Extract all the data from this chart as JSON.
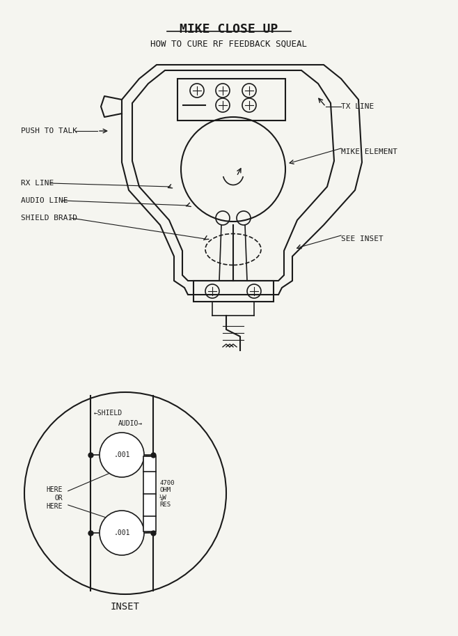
{
  "title": "MIKE CLOSE UP",
  "subtitle": "HOW TO CURE RF FEEDBACK SQUEAL",
  "bg_color": "#f5f5f0",
  "line_color": "#1a1a1a",
  "labels_left": [
    "PUSH TO TALK",
    "RX LINE",
    "AUDIO LINE",
    "SHIELD BRAID"
  ],
  "labels_right": [
    "TX LINE",
    "MIKE ELEMENT",
    "SEE INSET"
  ],
  "inset_label": "INSET",
  "cap_label1": ".001",
  "cap_label2": ".001",
  "resistor_label": "4700\nOHM\n¼ W\nRES",
  "shield_label": "SHIELD",
  "audio_label": "AUDIO"
}
